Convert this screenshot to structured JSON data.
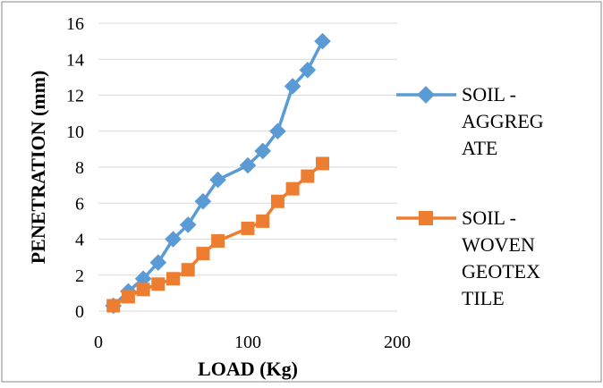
{
  "chart_data": {
    "type": "line",
    "xlabel": "LOAD (Kg)",
    "ylabel": "PENETRATION (mm)",
    "xlim": [
      0,
      200
    ],
    "ylim": [
      0,
      16
    ],
    "x_ticks": [
      "0",
      "100",
      "200"
    ],
    "y_ticks": [
      "0",
      "2",
      "4",
      "6",
      "8",
      "10",
      "12",
      "14",
      "16"
    ],
    "grid": "horizontal",
    "legend_position": "right",
    "series": [
      {
        "name": "SOIL - AGGREGATE",
        "legend_lines": [
          "SOIL -",
          "AGGREG",
          "ATE"
        ],
        "color": "#5b9bd5",
        "marker": "diamond",
        "x": [
          10,
          20,
          30,
          40,
          50,
          60,
          70,
          80,
          100,
          110,
          120,
          130,
          140,
          150
        ],
        "y": [
          0.3,
          1.1,
          1.8,
          2.7,
          4.0,
          4.8,
          6.1,
          7.3,
          8.1,
          8.9,
          10.0,
          12.5,
          13.4,
          15.0
        ]
      },
      {
        "name": "SOIL - WOVEN GEOTEXTILE",
        "legend_lines": [
          "SOIL -",
          "WOVEN",
          "GEOTEX",
          "TILE"
        ],
        "color": "#ed7d31",
        "marker": "square",
        "x": [
          10,
          20,
          30,
          40,
          50,
          60,
          70,
          80,
          100,
          110,
          120,
          130,
          140,
          150
        ],
        "y": [
          0.3,
          0.8,
          1.2,
          1.5,
          1.8,
          2.3,
          3.2,
          3.9,
          4.6,
          5.0,
          6.1,
          6.8,
          7.5,
          8.2
        ]
      }
    ]
  }
}
